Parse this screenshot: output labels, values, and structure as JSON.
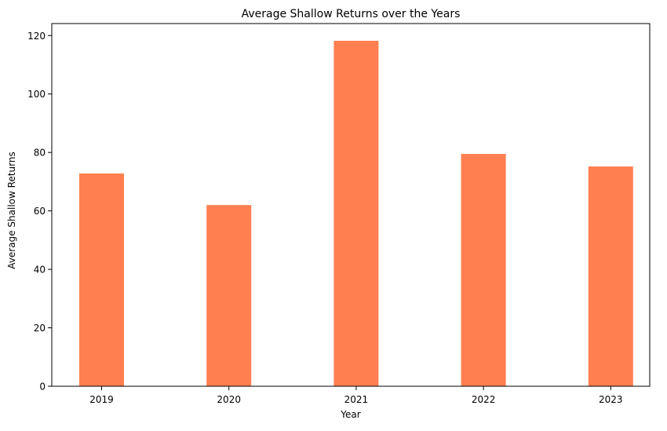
{
  "chart_data": {
    "type": "bar",
    "title": "Average Shallow Returns over the Years",
    "xlabel": "Year",
    "ylabel": "Average Shallow Returns",
    "categories": [
      "2019",
      "2020",
      "2021",
      "2022",
      "2023"
    ],
    "values": [
      72.8,
      62.0,
      118.2,
      79.5,
      75.2
    ],
    "ylim": [
      0,
      124.1
    ],
    "yticks": [
      0,
      20,
      40,
      60,
      80,
      100,
      120
    ],
    "bar_color": "#ff7f50",
    "grid": false,
    "legend": "none"
  }
}
